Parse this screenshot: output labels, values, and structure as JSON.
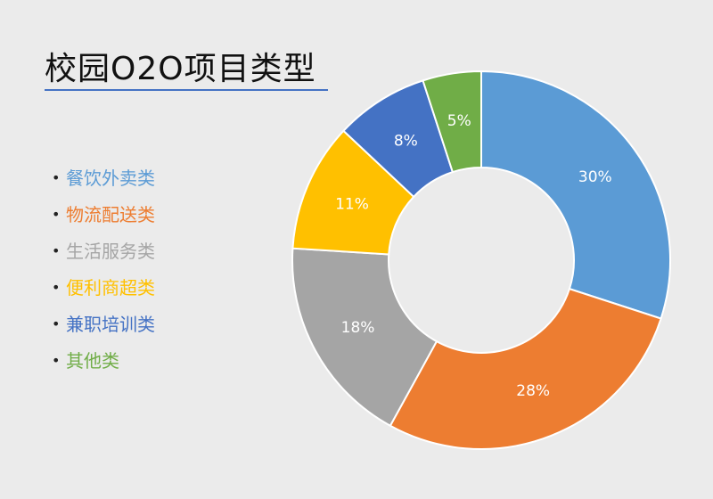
{
  "title": "校园O2O项目类型",
  "chart_data": {
    "type": "pie",
    "title": "校园O2O项目类型",
    "categories": [
      "餐饮外卖类",
      "物流配送类",
      "生活服务类",
      "便利商超类",
      "兼职培训类",
      "其他类"
    ],
    "values": [
      30,
      28,
      18,
      11,
      8,
      5
    ],
    "labels": [
      "30%",
      "28%",
      "18%",
      "11%",
      "8%",
      "5%"
    ],
    "colors": [
      "#5b9bd5",
      "#ed7d31",
      "#a5a5a5",
      "#ffc000",
      "#4472c4",
      "#70ad47"
    ],
    "donut": true,
    "legend_position": "left"
  }
}
